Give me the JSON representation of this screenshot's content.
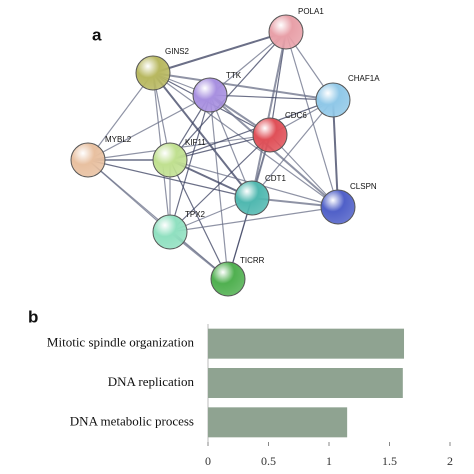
{
  "panel_a": {
    "label": "a",
    "nodes": [
      {
        "label": "POLA1"
      },
      {
        "label": "GINS2"
      },
      {
        "label": "TTK"
      },
      {
        "label": "CHAF1A"
      },
      {
        "label": "CDC6"
      },
      {
        "label": "MYBL2"
      },
      {
        "label": "KIF11"
      },
      {
        "label": "CDT1"
      },
      {
        "label": "CLSPN"
      },
      {
        "label": "TPX2"
      },
      {
        "label": "TICRR"
      }
    ]
  },
  "panel_b": {
    "label": "b"
  },
  "chart_data": {
    "type": "hbar",
    "categories": [
      "Mitotic spindle organization",
      "DNA replication",
      "DNA metabolic process"
    ],
    "values": [
      1.62,
      1.61,
      1.15
    ],
    "color": "#8fa391",
    "xlim": [
      0,
      2
    ],
    "xticks": [
      0,
      0.5,
      1,
      1.5,
      2
    ]
  }
}
